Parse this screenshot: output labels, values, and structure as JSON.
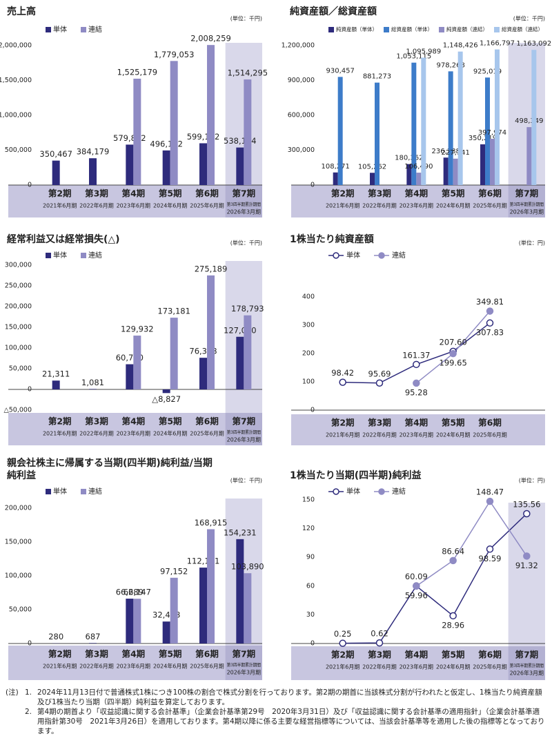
{
  "chart_data": [
    {
      "type": "bar",
      "title": "売上高",
      "unit": "(単位：千円)",
      "categories": [
        "第2期",
        "第3期",
        "第4期",
        "第5期",
        "第6期",
        "第7期"
      ],
      "periods": [
        "2021年6月期",
        "2022年6月期",
        "2023年6月期",
        "2024年6月期",
        "2025年6月期",
        "2026年3月期"
      ],
      "period_notes": [
        null,
        null,
        null,
        null,
        null,
        "第3四半期累計期間"
      ],
      "highlight_last_period": true,
      "series": [
        {
          "name": "単体",
          "color": "#2e2b7c",
          "values": [
            350467,
            384179,
            579812,
            496192,
            599142,
            538164
          ],
          "value_labels": [
            "350,467",
            "384,179",
            "579,812",
            "496,192",
            "599,142",
            "538,164"
          ]
        },
        {
          "name": "連結",
          "color": "#8f8bc4",
          "values": [
            null,
            null,
            1525179,
            1779053,
            2008259,
            1514295
          ],
          "value_labels": [
            null,
            null,
            "1,525,179",
            "1,779,053",
            "2,008,259",
            "1,514,295"
          ]
        }
      ],
      "ylim": [
        0,
        2000000
      ],
      "yticks": [
        0,
        {
          "value": 500000,
          "label": "500,000"
        },
        {
          "value": 1000000,
          "label": "1,000,000"
        },
        {
          "value": 1500000,
          "label": "1,500,000"
        },
        {
          "value": 2000000,
          "label": "2,000,000"
        }
      ],
      "grid": false
    },
    {
      "type": "bar",
      "title": "純資産額／総資産額",
      "unit": "(単位：千円)",
      "categories": [
        "第2期",
        "第3期",
        "第4期",
        "第5期",
        "第6期",
        "第7期"
      ],
      "periods": [
        "2021年6月期",
        "2022年6月期",
        "2023年6月期",
        "2024年6月期",
        "2025年6月期",
        "2026年3月期"
      ],
      "period_notes": [
        null,
        null,
        null,
        null,
        null,
        "第3四半期累計期間"
      ],
      "highlight_last_period": true,
      "series": [
        {
          "name": "純資産額（単体）",
          "color": "#2e2b7c",
          "values": [
            108271,
            105262,
            180362,
            236188,
            350219,
            null
          ],
          "value_labels": [
            "108,271",
            "105,262",
            "180,362",
            "236,188",
            "350,219",
            null
          ]
        },
        {
          "name": "総資産額（単体）",
          "color": "#3d7cc9",
          "values": [
            930457,
            881273,
            1053115,
            978268,
            925019,
            null
          ],
          "value_labels": [
            "930,457",
            "881,273",
            "1,053,115",
            "978,268",
            "925,019",
            null
          ]
        },
        {
          "name": "純資産額（連結）",
          "color": "#8f8bc4",
          "values": [
            null,
            null,
            106490,
            227141,
            397974,
            498349
          ],
          "value_labels": [
            null,
            null,
            "106,490",
            "227,141",
            "397,974",
            "498,349"
          ]
        },
        {
          "name": "総資産額（連結）",
          "color": "#a7c6ec",
          "values": [
            null,
            null,
            1095989,
            1148426,
            1166797,
            1163092
          ],
          "value_labels": [
            null,
            null,
            "1,095,989",
            "1,148,426",
            "1,166,797",
            "1,163,092"
          ]
        }
      ],
      "ylim": [
        0,
        1200000
      ],
      "yticks": [
        0,
        {
          "value": 300000,
          "label": "300,000"
        },
        {
          "value": 600000,
          "label": "600,000"
        },
        {
          "value": 900000,
          "label": "900,000"
        },
        {
          "value": 1200000,
          "label": "1,200,000"
        }
      ],
      "grid": false
    },
    {
      "type": "bar",
      "title": "経常利益又は経常損失(△)",
      "unit": "(単位：千円)",
      "categories": [
        "第2期",
        "第3期",
        "第4期",
        "第5期",
        "第6期",
        "第7期"
      ],
      "periods": [
        "2021年6月期",
        "2022年6月期",
        "2023年6月期",
        "2024年6月期",
        "2025年6月期",
        "2026年3月期"
      ],
      "period_notes": [
        null,
        null,
        null,
        null,
        null,
        "第3四半期累計期間"
      ],
      "highlight_last_period": true,
      "series": [
        {
          "name": "単体",
          "color": "#2e2b7c",
          "values": [
            21311,
            1081,
            60770,
            -8827,
            76378,
            127050
          ],
          "value_labels": [
            "21,311",
            "1,081",
            "60,770",
            "△8,827",
            "76,378",
            "127,050"
          ]
        },
        {
          "name": "連結",
          "color": "#8f8bc4",
          "values": [
            null,
            null,
            129932,
            173181,
            275189,
            178793
          ],
          "value_labels": [
            null,
            null,
            "129,932",
            "173,181",
            "275,189",
            "178,793"
          ]
        }
      ],
      "ylim": [
        -50000,
        300000
      ],
      "yticks": [
        {
          "value": -50000,
          "label": "△50,000"
        },
        0,
        {
          "value": 50000,
          "label": "50,000"
        },
        {
          "value": 100000,
          "label": "100,000"
        },
        {
          "value": 150000,
          "label": "150,000"
        },
        {
          "value": 200000,
          "label": "200,000"
        },
        {
          "value": 250000,
          "label": "250,000"
        },
        {
          "value": 300000,
          "label": "300,000"
        }
      ],
      "grid": false
    },
    {
      "type": "line",
      "title": "1株当たり純資産額",
      "unit": "(単位：円)",
      "categories": [
        "第2期",
        "第3期",
        "第4期",
        "第5期",
        "第6期"
      ],
      "periods": [
        "2021年6月期",
        "2022年6月期",
        "2023年6月期",
        "2024年6月期",
        "2025年6月期"
      ],
      "highlight_last_period": false,
      "series": [
        {
          "name": "単体",
          "color": "#2e2b7c",
          "values": [
            98.42,
            95.69,
            161.37,
            207.6,
            307.83
          ],
          "value_labels": [
            "98.42",
            "95.69",
            "161.37",
            "207.60",
            "307.83"
          ]
        },
        {
          "name": "連結",
          "color": "#8f8bc4",
          "values": [
            null,
            null,
            95.28,
            199.65,
            349.81
          ],
          "value_labels": [
            null,
            null,
            "95.28",
            "199.65",
            "349.81"
          ]
        }
      ],
      "ylim": [
        0,
        400
      ],
      "yticks": [
        0,
        100,
        200,
        300,
        400
      ],
      "grid": false
    },
    {
      "type": "bar",
      "title": "親会社株主に帰属する当期(四半期)純利益/当期純利益",
      "unit": "(単位：千円)",
      "categories": [
        "第2期",
        "第3期",
        "第4期",
        "第5期",
        "第6期",
        "第7期"
      ],
      "periods": [
        "2021年6月期",
        "2022年6月期",
        "2023年6月期",
        "2024年6月期",
        "2025年6月期",
        "2026年3月期"
      ],
      "period_notes": [
        null,
        null,
        null,
        null,
        null,
        "第3四半期累計期間"
      ],
      "highlight_last_period": true,
      "series": [
        {
          "name": "単体",
          "color": "#2e2b7c",
          "values": [
            280,
            687,
            66289,
            32478,
            112161,
            154231
          ],
          "value_labels": [
            "280",
            "687",
            "66,289",
            "32,478",
            "112,161",
            "154,231"
          ]
        },
        {
          "name": "連結",
          "color": "#8f8bc4",
          "values": [
            null,
            null,
            66147,
            97152,
            168915,
            103890
          ],
          "value_labels": [
            null,
            null,
            "66,147",
            "97,152",
            "168,915",
            "103,890"
          ]
        }
      ],
      "ylim": [
        0,
        200000
      ],
      "yticks": [
        0,
        {
          "value": 50000,
          "label": "50,000"
        },
        {
          "value": 100000,
          "label": "100,000"
        },
        {
          "value": 150000,
          "label": "150,000"
        },
        {
          "value": 200000,
          "label": "200,000"
        }
      ],
      "grid": false
    },
    {
      "type": "line",
      "title": "1株当たり当期(四半期)純利益",
      "unit": "(単位：円)",
      "categories": [
        "第2期",
        "第3期",
        "第4期",
        "第5期",
        "第6期",
        "第7期"
      ],
      "periods": [
        "2021年6月期",
        "2022年6月期",
        "2023年6月期",
        "2024年6月期",
        "2025年6月期",
        "2026年3月期"
      ],
      "period_notes": [
        null,
        null,
        null,
        null,
        null,
        "第3四半期累計期間"
      ],
      "highlight_last_period": true,
      "series": [
        {
          "name": "単体",
          "color": "#2e2b7c",
          "values": [
            0.25,
            0.62,
            60.09,
            28.96,
            98.59,
            135.56
          ],
          "value_labels": [
            "0.25",
            "0.62",
            "60.09",
            "28.96",
            "98.59",
            "135.56"
          ]
        },
        {
          "name": "連結",
          "color": "#8f8bc4",
          "values": [
            null,
            null,
            59.96,
            86.64,
            148.47,
            91.32
          ],
          "value_labels": [
            null,
            null,
            "59.96",
            "86.64",
            "148.47",
            "91.32"
          ]
        }
      ],
      "ylim": [
        0,
        150
      ],
      "yticks": [
        0,
        30,
        60,
        90,
        120,
        150
      ],
      "grid": false
    }
  ],
  "notes": {
    "label": "(注)",
    "items": [
      {
        "number": "1.",
        "text": "2024年11月13日付で普通株式1株につき100株の割合で株式分割を行っております。第2期の期首に当該株式分割が行われたと仮定し、1株当たり純資産額及び1株当たり当期（四半期）純利益を算定しております。"
      },
      {
        "number": "2.",
        "text": "第4期の期首より「収益認識に関する会計基準」（企業会計基準第29号　2020年3月31日）及び「収益認識に関する会計基準の適用指針」（企業会計基準適用指針第30号　2021年3月26日）を適用しております。第4期以降に係る主要な経営指標等については、当該会計基準等を適用した後の指標等となっております。"
      }
    ]
  }
}
